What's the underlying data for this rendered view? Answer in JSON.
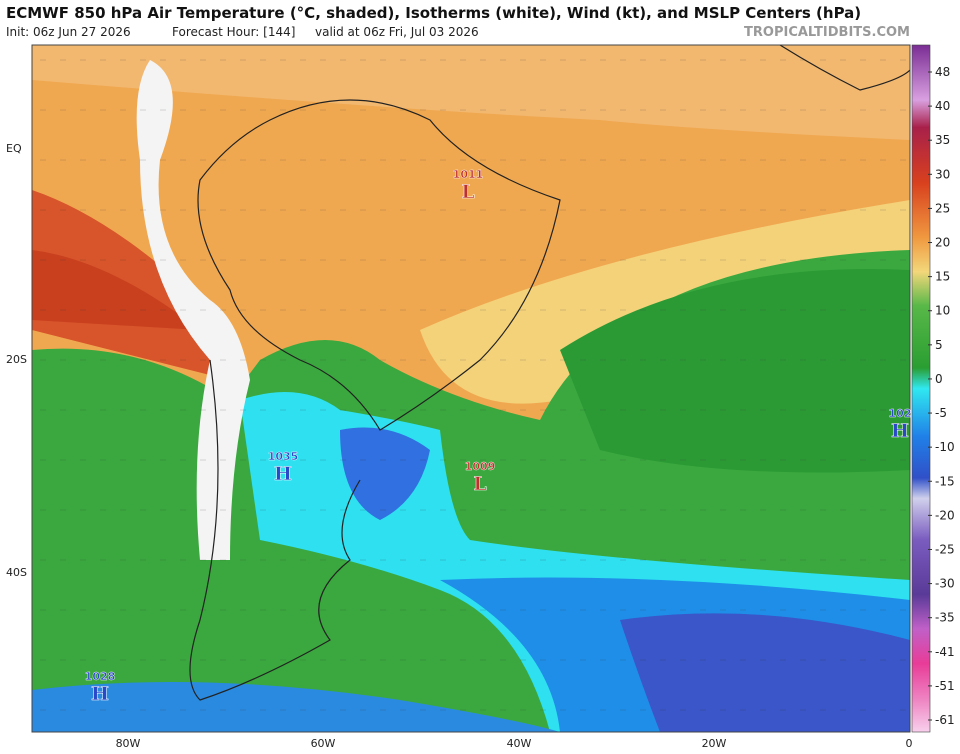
{
  "header": {
    "title": "ECMWF 850 hPa Air Temperature (°C, shaded), Isotherms (white), Wind (kt), and MSLP Centers (hPa)",
    "init": "Init: 06z Jun 27 2026",
    "forecast": "Forecast Hour: [144]",
    "valid": "valid at 06z Fri, Jul 03 2026",
    "brand": "TROPICALTIDBITS.COM"
  },
  "map": {
    "lat_labels": [
      "EQ",
      "20S",
      "40S"
    ],
    "lon_labels": [
      "80W",
      "60W",
      "40W",
      "20W",
      "0"
    ],
    "centers": [
      {
        "value": "1011",
        "letter": "L",
        "color": "#c0302a"
      },
      {
        "value": "1009",
        "letter": "L",
        "color": "#c0302a"
      },
      {
        "value": "1035",
        "letter": "H",
        "color": "#2a48c8"
      },
      {
        "value": "1028",
        "letter": "H",
        "color": "#2a48c8"
      },
      {
        "value": "102",
        "letter": "H",
        "color": "#2a48c8"
      }
    ]
  },
  "colorbar": {
    "ticks": [
      "48",
      "40",
      "35",
      "30",
      "25",
      "20",
      "15",
      "10",
      "5",
      "0",
      "-5",
      "-10",
      "-15",
      "-20",
      "-25",
      "-30",
      "-35",
      "-41",
      "-51",
      "-61"
    ]
  }
}
